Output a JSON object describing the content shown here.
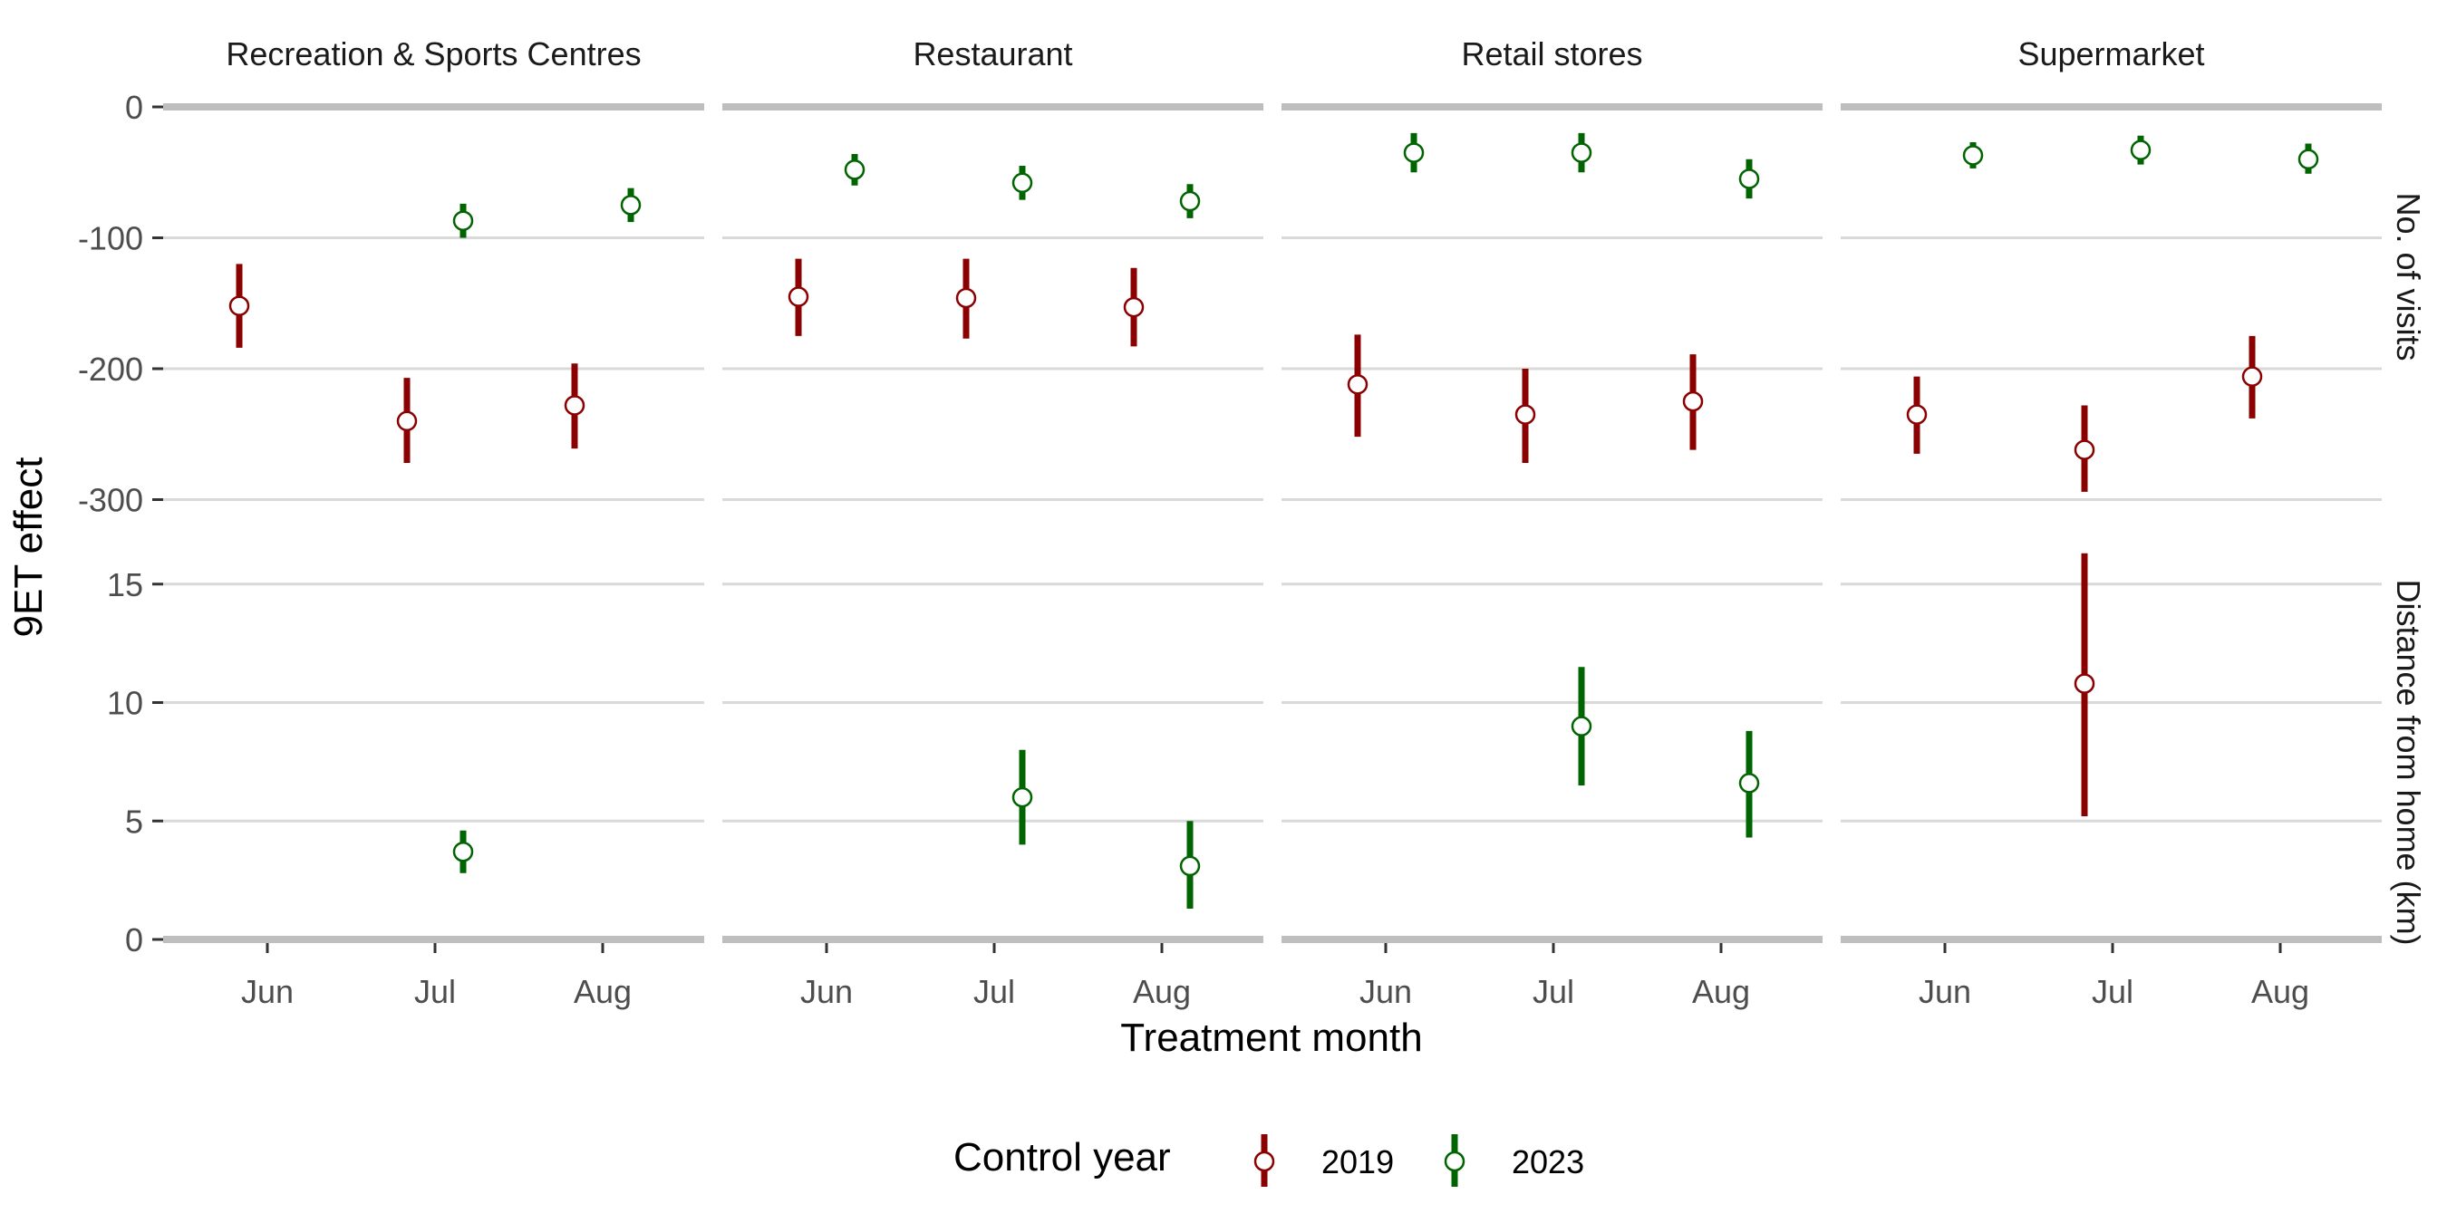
{
  "chart_data": {
    "type": "scatter",
    "subtype": "point-range faceted",
    "xlabel": "Treatment month",
    "ylabel": "9ET effect",
    "categories": [
      "Jun",
      "Jul",
      "Aug"
    ],
    "facet_columns": [
      "Recreation & Sports Centres",
      "Restaurant",
      "Retail stores",
      "Supermarket"
    ],
    "facet_rows": [
      {
        "label": "No. of visits",
        "ylim": [
          -310,
          0
        ],
        "ticks": [
          0,
          -100,
          -200,
          -300
        ],
        "tick_labels": [
          "0",
          "-100",
          "-200",
          "-300"
        ]
      },
      {
        "label": "Distance from home (km)",
        "ylim": [
          0,
          16.5
        ],
        "ticks": [
          0,
          5,
          10,
          15
        ],
        "tick_labels": [
          "0",
          "5",
          "10",
          "15"
        ]
      }
    ],
    "legend": {
      "title": "Control year",
      "position": "bottom",
      "entries": [
        "2019",
        "2023"
      ]
    },
    "colors": {
      "2019": "#8b0000",
      "2023": "#006400",
      "axis_line": "#bebebe",
      "grid": "#d9d9d9"
    },
    "grid": true,
    "series": [
      {
        "name": "2019",
        "points": [
          {
            "facet": "Recreation & Sports Centres",
            "row": "No. of visits",
            "x": "Jun",
            "y": -152,
            "lo": -184,
            "hi": -120
          },
          {
            "facet": "Recreation & Sports Centres",
            "row": "No. of visits",
            "x": "Jul",
            "y": -240,
            "lo": -272,
            "hi": -207
          },
          {
            "facet": "Recreation & Sports Centres",
            "row": "No. of visits",
            "x": "Aug",
            "y": -228,
            "lo": -261,
            "hi": -196
          },
          {
            "facet": "Restaurant",
            "row": "No. of visits",
            "x": "Jun",
            "y": -145,
            "lo": -175,
            "hi": -116
          },
          {
            "facet": "Restaurant",
            "row": "No. of visits",
            "x": "Jul",
            "y": -146,
            "lo": -177,
            "hi": -116
          },
          {
            "facet": "Restaurant",
            "row": "No. of visits",
            "x": "Aug",
            "y": -153,
            "lo": -183,
            "hi": -123
          },
          {
            "facet": "Retail stores",
            "row": "No. of visits",
            "x": "Jun",
            "y": -212,
            "lo": -252,
            "hi": -174
          },
          {
            "facet": "Retail stores",
            "row": "No. of visits",
            "x": "Jul",
            "y": -235,
            "lo": -272,
            "hi": -200
          },
          {
            "facet": "Retail stores",
            "row": "No. of visits",
            "x": "Aug",
            "y": -225,
            "lo": -262,
            "hi": -189
          },
          {
            "facet": "Supermarket",
            "row": "No. of visits",
            "x": "Jun",
            "y": -235,
            "lo": -265,
            "hi": -206
          },
          {
            "facet": "Supermarket",
            "row": "No. of visits",
            "x": "Jul",
            "y": -262,
            "lo": -294,
            "hi": -228
          },
          {
            "facet": "Supermarket",
            "row": "No. of visits",
            "x": "Aug",
            "y": -206,
            "lo": -238,
            "hi": -175
          },
          {
            "facet": "Supermarket",
            "row": "Distance from home (km)",
            "x": "Jul",
            "y": 10.8,
            "lo": 5.2,
            "hi": 16.3
          }
        ]
      },
      {
        "name": "2023",
        "points": [
          {
            "facet": "Recreation & Sports Centres",
            "row": "No. of visits",
            "x": "Jul",
            "y": -87,
            "lo": -100,
            "hi": -74
          },
          {
            "facet": "Recreation & Sports Centres",
            "row": "No. of visits",
            "x": "Aug",
            "y": -75,
            "lo": -88,
            "hi": -62
          },
          {
            "facet": "Restaurant",
            "row": "No. of visits",
            "x": "Jun",
            "y": -48,
            "lo": -60,
            "hi": -36
          },
          {
            "facet": "Restaurant",
            "row": "No. of visits",
            "x": "Jul",
            "y": -58,
            "lo": -71,
            "hi": -45
          },
          {
            "facet": "Restaurant",
            "row": "No. of visits",
            "x": "Aug",
            "y": -72,
            "lo": -85,
            "hi": -59
          },
          {
            "facet": "Retail stores",
            "row": "No. of visits",
            "x": "Jun",
            "y": -35,
            "lo": -50,
            "hi": -20
          },
          {
            "facet": "Retail stores",
            "row": "No. of visits",
            "x": "Jul",
            "y": -35,
            "lo": -50,
            "hi": -20
          },
          {
            "facet": "Retail stores",
            "row": "No. of visits",
            "x": "Aug",
            "y": -55,
            "lo": -70,
            "hi": -40
          },
          {
            "facet": "Supermarket",
            "row": "No. of visits",
            "x": "Jun",
            "y": -37,
            "lo": -47,
            "hi": -27
          },
          {
            "facet": "Supermarket",
            "row": "No. of visits",
            "x": "Jul",
            "y": -33,
            "lo": -44,
            "hi": -22
          },
          {
            "facet": "Supermarket",
            "row": "No. of visits",
            "x": "Aug",
            "y": -40,
            "lo": -51,
            "hi": -28
          },
          {
            "facet": "Recreation & Sports Centres",
            "row": "Distance from home (km)",
            "x": "Jul",
            "y": 3.7,
            "lo": 2.8,
            "hi": 4.6
          },
          {
            "facet": "Restaurant",
            "row": "Distance from home (km)",
            "x": "Jul",
            "y": 6.0,
            "lo": 4.0,
            "hi": 8.0
          },
          {
            "facet": "Restaurant",
            "row": "Distance from home (km)",
            "x": "Aug",
            "y": 3.1,
            "lo": 1.3,
            "hi": 5.0
          },
          {
            "facet": "Retail stores",
            "row": "Distance from home (km)",
            "x": "Jul",
            "y": 9.0,
            "lo": 6.5,
            "hi": 11.5
          },
          {
            "facet": "Retail stores",
            "row": "Distance from home (km)",
            "x": "Aug",
            "y": 6.6,
            "lo": 4.3,
            "hi": 8.8
          }
        ]
      }
    ]
  }
}
